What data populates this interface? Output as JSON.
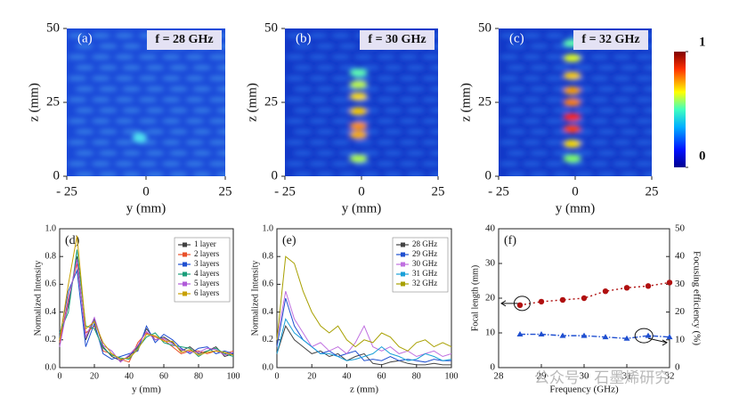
{
  "chart_data": [
    {
      "type": "heatmap",
      "label": "(a)",
      "annotation": "f = 28 GHz",
      "xlabel": "y (mm)",
      "ylabel": "z (mm)",
      "xlim": [
        -25,
        25
      ],
      "xticks": [
        {
          "value": -25,
          "label": "- 25"
        },
        0,
        25
      ],
      "ylim": [
        0,
        50
      ],
      "yticks": [
        0,
        25,
        50
      ]
    },
    {
      "type": "heatmap",
      "label": "(b)",
      "annotation": "f = 30 GHz",
      "xlabel": "y (mm)",
      "ylabel": "z (mm)",
      "xlim": [
        -25,
        25
      ],
      "xticks": [
        {
          "value": -25,
          "label": "- 25"
        },
        0,
        25
      ],
      "ylim": [
        0,
        50
      ],
      "yticks": [
        0,
        25,
        50
      ]
    },
    {
      "type": "heatmap",
      "label": "(c)",
      "annotation": "f = 32 GHz",
      "xlabel": "y (mm)",
      "ylabel": "z (mm)",
      "xlim": [
        -25,
        25
      ],
      "xticks": [
        {
          "value": -25,
          "label": "- 25"
        },
        0,
        25
      ],
      "ylim": [
        0,
        50
      ],
      "yticks": [
        0,
        25,
        50
      ]
    },
    {
      "type": "line",
      "label": "(d)",
      "xlabel": "y (mm)",
      "ylabel": "Normalized Intensity",
      "xlim": [
        0,
        100
      ],
      "xticks": [
        0,
        20,
        40,
        60,
        80,
        100
      ],
      "ylim": [
        0,
        1
      ],
      "yticks": [
        {
          "value": 0,
          "label": "0.0"
        },
        {
          "value": 0.2,
          "label": "0.2"
        },
        {
          "value": 0.4,
          "label": "0.4"
        },
        {
          "value": 0.6,
          "label": "0.6"
        },
        {
          "value": 0.8,
          "label": "0.8"
        },
        {
          "value": 1,
          "label": "1.0"
        }
      ],
      "x": [
        0,
        5,
        10,
        15,
        20,
        25,
        30,
        35,
        40,
        45,
        50,
        55,
        60,
        65,
        70,
        75,
        80,
        85,
        90,
        95,
        100
      ],
      "series": [
        {
          "name": "1 layer",
          "color": "#404040",
          "values": [
            0.2,
            0.45,
            0.8,
            0.2,
            0.35,
            0.15,
            0.08,
            0.05,
            0.08,
            0.15,
            0.28,
            0.2,
            0.22,
            0.18,
            0.12,
            0.15,
            0.1,
            0.12,
            0.15,
            0.08,
            0.1
          ]
        },
        {
          "name": "2 layers",
          "color": "#e8502a",
          "values": [
            0.18,
            0.5,
            0.75,
            0.25,
            0.3,
            0.12,
            0.1,
            0.06,
            0.04,
            0.18,
            0.25,
            0.22,
            0.2,
            0.15,
            0.1,
            0.12,
            0.12,
            0.1,
            0.12,
            0.1,
            0.12
          ]
        },
        {
          "name": "3 layers",
          "color": "#1f4fd0",
          "values": [
            0.22,
            0.55,
            0.7,
            0.15,
            0.32,
            0.1,
            0.06,
            0.08,
            0.1,
            0.12,
            0.3,
            0.18,
            0.24,
            0.2,
            0.14,
            0.1,
            0.14,
            0.15,
            0.1,
            0.12,
            0.1
          ]
        },
        {
          "name": "4 layers",
          "color": "#1a9e7a",
          "values": [
            0.25,
            0.4,
            0.85,
            0.3,
            0.28,
            0.14,
            0.09,
            0.07,
            0.06,
            0.14,
            0.22,
            0.25,
            0.18,
            0.16,
            0.15,
            0.14,
            0.08,
            0.12,
            0.14,
            0.1,
            0.08
          ]
        },
        {
          "name": "5 layers",
          "color": "#b05ad8",
          "values": [
            0.15,
            0.48,
            0.78,
            0.22,
            0.36,
            0.16,
            0.12,
            0.04,
            0.09,
            0.16,
            0.26,
            0.2,
            0.21,
            0.17,
            0.13,
            0.11,
            0.11,
            0.14,
            0.13,
            0.09,
            0.11
          ]
        },
        {
          "name": "6 layers",
          "color": "#c8a000",
          "values": [
            0.2,
            0.6,
            0.95,
            0.28,
            0.33,
            0.18,
            0.1,
            0.06,
            0.07,
            0.13,
            0.24,
            0.23,
            0.19,
            0.19,
            0.11,
            0.13,
            0.09,
            0.11,
            0.12,
            0.11,
            0.09
          ]
        }
      ],
      "legend": "upper right"
    },
    {
      "type": "line",
      "label": "(e)",
      "xlabel": "z (mm)",
      "ylabel": "Normalized Intensity",
      "xlim": [
        0,
        100
      ],
      "xticks": [
        0,
        20,
        40,
        60,
        80,
        100
      ],
      "ylim": [
        0,
        1
      ],
      "yticks": [
        {
          "value": 0,
          "label": "0.0"
        },
        {
          "value": 0.2,
          "label": "0.2"
        },
        {
          "value": 0.4,
          "label": "0.4"
        },
        {
          "value": 0.6,
          "label": "0.6"
        },
        {
          "value": 0.8,
          "label": "0.8"
        },
        {
          "value": 1,
          "label": "1.0"
        }
      ],
      "x": [
        0,
        5,
        10,
        15,
        20,
        25,
        30,
        35,
        40,
        45,
        50,
        55,
        60,
        65,
        70,
        75,
        80,
        85,
        90,
        95,
        100
      ],
      "series": [
        {
          "name": "28 GHz",
          "color": "#444444",
          "values": [
            0.1,
            0.3,
            0.2,
            0.15,
            0.1,
            0.12,
            0.08,
            0.1,
            0.05,
            0.08,
            0.1,
            0.03,
            0.02,
            0.04,
            0.05,
            0.03,
            0.02,
            0.02,
            0.03,
            0.02,
            0.02
          ]
        },
        {
          "name": "29 GHz",
          "color": "#1f4fd0",
          "values": [
            0.15,
            0.5,
            0.3,
            0.2,
            0.15,
            0.1,
            0.12,
            0.08,
            0.1,
            0.12,
            0.05,
            0.06,
            0.05,
            0.08,
            0.05,
            0.06,
            0.05,
            0.04,
            0.06,
            0.05,
            0.05
          ]
        },
        {
          "name": "30 GHz",
          "color": "#c070e0",
          "values": [
            0.2,
            0.55,
            0.35,
            0.25,
            0.15,
            0.18,
            0.12,
            0.15,
            0.1,
            0.18,
            0.3,
            0.15,
            0.12,
            0.15,
            0.1,
            0.12,
            0.08,
            0.1,
            0.12,
            0.08,
            0.1
          ]
        },
        {
          "name": "31 GHz",
          "color": "#1aa0d8",
          "values": [
            0.1,
            0.35,
            0.25,
            0.2,
            0.15,
            0.1,
            0.1,
            0.08,
            0.05,
            0.06,
            0.08,
            0.1,
            0.15,
            0.1,
            0.08,
            0.05,
            0.06,
            0.1,
            0.08,
            0.05,
            0.06
          ]
        },
        {
          "name": "32 GHz",
          "color": "#a8a000",
          "values": [
            0.2,
            0.8,
            0.75,
            0.55,
            0.4,
            0.3,
            0.25,
            0.3,
            0.2,
            0.15,
            0.2,
            0.18,
            0.25,
            0.22,
            0.15,
            0.12,
            0.18,
            0.2,
            0.15,
            0.18,
            0.15
          ]
        }
      ],
      "legend": "upper right"
    },
    {
      "type": "dual",
      "label": "(f)",
      "xlabel": "Frequency (GHz)",
      "ylabel": "Focal length (mm)",
      "y2label": "Focusing efficiency (%)",
      "xlim": [
        28,
        32
      ],
      "xticks": [
        28,
        29,
        30,
        31,
        32
      ],
      "ylim": [
        0,
        40
      ],
      "yticks": [
        0,
        10,
        20,
        30,
        40
      ],
      "y2lim": [
        0,
        50
      ],
      "y2ticks": [
        0,
        10,
        20,
        30,
        40,
        50
      ],
      "x": [
        28.5,
        29,
        29.5,
        30,
        30.5,
        31,
        31.5,
        32
      ],
      "series": [
        {
          "color": "#b01010",
          "values": [
            18,
            19,
            19.5,
            20,
            22,
            23,
            23.5,
            24.5
          ]
        },
        {
          "color": "#1f4fd0",
          "axis": "y2",
          "values": [
            12,
            12,
            11.5,
            11.5,
            11,
            10.5,
            11.5,
            11
          ]
        }
      ]
    }
  ],
  "colorbar": {
    "ticks": [
      0,
      1
    ]
  },
  "watermark": "公众号 · 石墨烯研究"
}
